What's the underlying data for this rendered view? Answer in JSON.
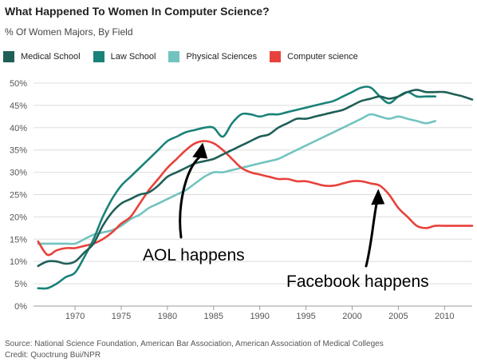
{
  "title": "What Happened To Women In Computer Science?",
  "subtitle": "% Of Women Majors, By Field",
  "legend": [
    {
      "label": "Medical School",
      "color": "#1f5f57"
    },
    {
      "label": "Law School",
      "color": "#198279"
    },
    {
      "label": "Physical Sciences",
      "color": "#72c3bf"
    },
    {
      "label": "Computer science",
      "color": "#e8413b"
    }
  ],
  "source": "Source: National Science Foundation, American Bar Association, American Association of Medical Colleges",
  "credit": "Credit: Quoctrung Bui/NPR",
  "chart_data": {
    "type": "line",
    "title": "What Happened To Women In Computer Science?",
    "subtitle": "% Of Women Majors, By Field",
    "xlim": [
      1965.5,
      2013
    ],
    "ylim": [
      0,
      50
    ],
    "x_ticks": [
      1970,
      1975,
      1980,
      1985,
      1990,
      1995,
      2000,
      2005,
      2010
    ],
    "y_ticks": [
      0,
      5,
      10,
      15,
      20,
      25,
      30,
      35,
      40,
      45,
      50
    ],
    "y_tick_labels": [
      "0%",
      "5%",
      "10%",
      "15%",
      "20%",
      "25%",
      "30%",
      "35%",
      "40%",
      "45%",
      "50%"
    ],
    "grid": "horizontal",
    "legend_position": "top",
    "series": [
      {
        "name": "Medical School",
        "color": "#1f5f57",
        "x": [
          1966,
          1967,
          1968,
          1969,
          1970,
          1971,
          1972,
          1973,
          1974,
          1975,
          1976,
          1977,
          1978,
          1979,
          1980,
          1981,
          1982,
          1983,
          1984,
          1985,
          1986,
          1987,
          1988,
          1989,
          1990,
          1991,
          1992,
          1993,
          1994,
          1995,
          1996,
          1997,
          1998,
          1999,
          2000,
          2001,
          2002,
          2003,
          2004,
          2005,
          2006,
          2007,
          2008,
          2009,
          2010,
          2011,
          2012,
          2013
        ],
        "values": [
          9,
          10,
          10,
          9.5,
          10,
          12,
          14,
          18,
          21,
          23,
          24,
          25,
          25.5,
          27,
          29,
          30,
          31,
          32,
          32.5,
          33,
          34,
          35,
          36,
          37,
          38,
          38.5,
          40,
          41,
          42,
          42,
          42.5,
          43,
          43.5,
          44,
          45,
          46,
          46.5,
          47,
          46.5,
          47,
          48,
          48.5,
          48,
          48,
          48,
          47.5,
          47,
          46.3
        ]
      },
      {
        "name": "Law School",
        "color": "#198279",
        "x": [
          1966,
          1967,
          1968,
          1969,
          1970,
          1971,
          1972,
          1973,
          1974,
          1975,
          1976,
          1977,
          1978,
          1979,
          1980,
          1981,
          1982,
          1983,
          1984,
          1985,
          1986,
          1987,
          1988,
          1989,
          1990,
          1991,
          1992,
          1993,
          1994,
          1995,
          1996,
          1997,
          1998,
          1999,
          2000,
          2001,
          2002,
          2003,
          2004,
          2005,
          2006,
          2007,
          2008,
          2009
        ],
        "values": [
          4,
          4,
          5,
          6.5,
          7.5,
          11,
          15,
          20,
          24,
          27,
          29,
          31,
          33,
          35,
          37,
          38,
          39,
          39.5,
          40,
          40,
          38,
          41,
          43,
          43,
          42.5,
          43,
          43,
          43.5,
          44,
          44.5,
          45,
          45.5,
          46,
          47,
          48,
          49,
          49,
          47,
          45.5,
          47,
          48,
          47,
          47,
          47
        ]
      },
      {
        "name": "Physical Sciences",
        "color": "#72c3bf",
        "x": [
          1966,
          1967,
          1968,
          1969,
          1970,
          1971,
          1972,
          1973,
          1974,
          1975,
          1976,
          1977,
          1978,
          1979,
          1980,
          1981,
          1982,
          1983,
          1984,
          1985,
          1986,
          1987,
          1988,
          1989,
          1990,
          1991,
          1992,
          1993,
          1994,
          1995,
          1996,
          1997,
          1998,
          1999,
          2000,
          2001,
          2002,
          2003,
          2004,
          2005,
          2006,
          2007,
          2008,
          2009
        ],
        "values": [
          14,
          14,
          14,
          14,
          14,
          15,
          16,
          16.5,
          17,
          18,
          19.5,
          20.5,
          22,
          23,
          24,
          25,
          26,
          27.5,
          29,
          30,
          30,
          30.5,
          31,
          31.5,
          32,
          32.5,
          33,
          34,
          35,
          36,
          37,
          38,
          39,
          40,
          41,
          42,
          43,
          42.5,
          42,
          42.5,
          42,
          41.5,
          41,
          41.5
        ]
      },
      {
        "name": "Computer science",
        "color": "#e8413b",
        "x": [
          1966,
          1967,
          1968,
          1969,
          1970,
          1971,
          1972,
          1973,
          1974,
          1975,
          1976,
          1977,
          1978,
          1979,
          1980,
          1981,
          1982,
          1983,
          1984,
          1985,
          1986,
          1987,
          1988,
          1989,
          1990,
          1991,
          1992,
          1993,
          1994,
          1995,
          1996,
          1997,
          1998,
          1999,
          2000,
          2001,
          2002,
          2003,
          2004,
          2005,
          2006,
          2007,
          2008,
          2009,
          2010,
          2011,
          2012,
          2013
        ],
        "values": [
          14.5,
          11.5,
          12.5,
          13,
          13,
          13.5,
          14,
          15,
          16.5,
          18.5,
          20,
          23,
          26,
          28.5,
          31,
          33,
          35,
          36.5,
          37,
          36.5,
          35,
          33,
          31,
          30,
          29.5,
          29,
          28.5,
          28.5,
          28,
          28,
          27.5,
          27,
          27,
          27.5,
          28,
          28,
          27.5,
          27,
          25,
          22,
          20,
          18,
          17.5,
          18,
          18,
          18,
          18,
          18
        ]
      }
    ],
    "annotations": [
      {
        "text": "AOL happens",
        "point_at": [
          1984,
          37
        ]
      },
      {
        "text": "Facebook happens",
        "point_at": [
          2003,
          27
        ]
      }
    ]
  }
}
